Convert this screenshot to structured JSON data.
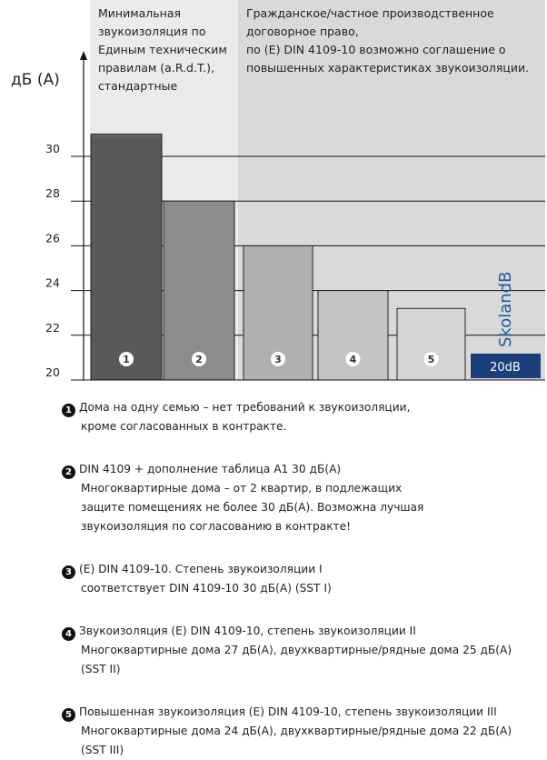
{
  "chart_data": {
    "type": "bar",
    "ylabel": "дБ (А)",
    "ylim": [
      20,
      30
    ],
    "yticks": [
      "20",
      "22",
      "24",
      "26",
      "28",
      "30"
    ],
    "categories": [
      "1",
      "2",
      "3",
      "4",
      "5"
    ],
    "category_markers": [
      "➊",
      "➋",
      "➌",
      "➍",
      "➎"
    ],
    "values": [
      31,
      28,
      26,
      24,
      23.2
    ],
    "colors": [
      "#595959",
      "#8c8c8c",
      "#b0b0b0",
      "#c4c4c4",
      "#d4d4d4"
    ],
    "regions": [
      {
        "text": [
          "Минимальная",
          "звукоизоляция по",
          "Единым техническим",
          "правилам (a.R.d.T.),",
          "стандартные"
        ],
        "background": "#ebebeb"
      },
      {
        "text": [
          "Гражданское/частное производственное",
          "договорное право,",
          "по (E) DIN 4109-10 возможно соглашение о",
          "повышенных характеристиках звукоизоляции."
        ],
        "background": "#d9d9d9"
      }
    ],
    "brand": {
      "name": "SkolandB",
      "badge": "20dB",
      "color": "#1f5a9a",
      "badge_bg": "#1a3f7a"
    }
  },
  "notes": [
    {
      "num": "1",
      "lines": [
        "Дома на одну семью – нет требований к звукоизоляции,",
        "кроме согласованных в контракте."
      ]
    },
    {
      "num": "2",
      "lines": [
        "DIN 4109 + дополнение таблица A1 30 дБ(А)",
        "Многоквартирные дома – от 2 квартир, в подлежащих",
        "защите помещениях не более 30 дБ(А). Возможна лучшая",
        "звукоизоляция по согласованию в контракте!"
      ]
    },
    {
      "num": "3",
      "lines": [
        "(E) DIN 4109-10. Степень звукоизоляции I",
        "соответствует DIN 4109-10 30 дБ(А) (SST I)"
      ]
    },
    {
      "num": "4",
      "lines": [
        "Звукоизоляция (E) DIN 4109-10, степень звукоизоляции II",
        "Многоквартирные дома 27 дБ(А), двухквартирные/рядные дома 25 дБ(А)",
        "(SST II)"
      ]
    },
    {
      "num": "5",
      "lines": [
        "Повышенная звукоизоляция (E) DIN 4109-10, степень звукоизоляции III",
        "Многоквартирные дома 24 дБ(А), двухквартирные/рядные дома 22 дБ(А)",
        "(SST III)"
      ]
    }
  ]
}
